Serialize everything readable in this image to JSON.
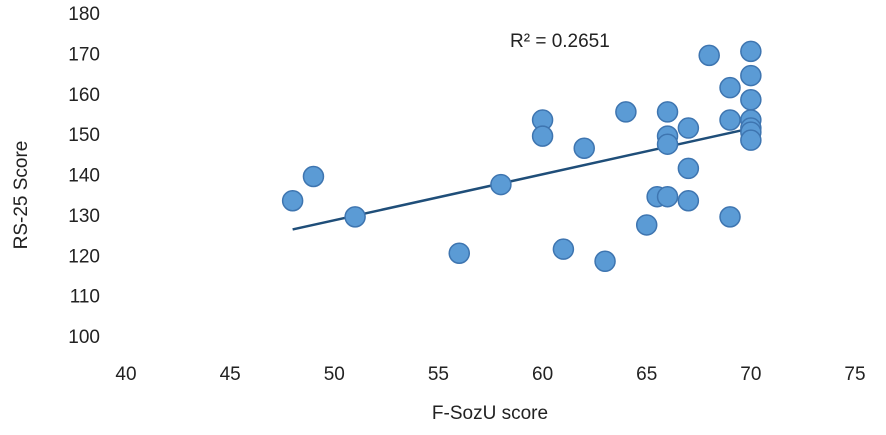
{
  "chart_data": {
    "type": "scatter",
    "x_label": "F-SozU score",
    "y_label": "RS-25 Score",
    "annotation": "R² = 0.2651",
    "series": [
      {
        "color": "#5b9bd5",
        "trendline_color": "#1f4e79",
        "x": [
          48,
          49,
          51,
          56,
          58,
          61,
          63,
          62,
          60,
          60,
          64,
          65,
          65.5,
          66,
          66,
          66,
          66,
          67,
          67,
          67,
          68,
          69,
          69,
          69,
          70,
          70,
          70,
          70,
          70,
          70,
          70
        ],
        "values": [
          134,
          140,
          130,
          121,
          138,
          122,
          119,
          147,
          154,
          150,
          156,
          128,
          135,
          135,
          156,
          150,
          148,
          152,
          142,
          134,
          170,
          162,
          154,
          130,
          171,
          165,
          159,
          154,
          152,
          151,
          149
        ]
      }
    ],
    "xlim": [
      40,
      75
    ],
    "xticks": [
      40,
      45,
      50,
      55,
      60,
      65,
      70,
      75
    ],
    "ylim": [
      100,
      180
    ],
    "yticks": [
      100,
      110,
      120,
      130,
      140,
      150,
      160,
      170,
      180
    ],
    "grid": false,
    "trendline": true
  }
}
